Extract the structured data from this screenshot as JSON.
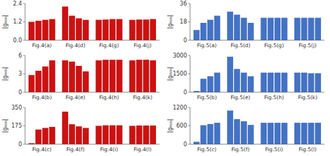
{
  "chart_data": [
    {
      "type": "bar",
      "y_label": "|gₘᵢₙ|",
      "categories": [
        "Fig.4(a)",
        "Fig.4(d)",
        "Fig.4(g)",
        "Fig.4(j)"
      ],
      "color": "#cc1111",
      "grid": false,
      "series": [
        {
          "values": [
            1.2,
            2.2,
            1.33,
            1.33
          ]
        },
        {
          "values": [
            1.27,
            1.6,
            1.35,
            1.35
          ]
        },
        {
          "values": [
            1.33,
            1.43,
            1.38,
            1.35
          ]
        },
        {
          "values": [
            1.38,
            1.33,
            1.38,
            1.38
          ]
        }
      ],
      "ylim": [
        0,
        2.4
      ],
      "yticks": [
        {
          "value": 0,
          "label": "0.0"
        },
        1.2,
        2.4
      ]
    },
    {
      "type": "bar",
      "y_label": "|gₘᵢₙ|",
      "categories": [
        "Fig.4(b)",
        "Fig.4(e)",
        "Fig.4(h)",
        "Fig.4(k)"
      ],
      "color": "#cc1111",
      "grid": false,
      "series": [
        {
          "values": [
            2.8,
            5.2,
            5.2,
            5.2
          ]
        },
        {
          "values": [
            3.5,
            5.0,
            5.3,
            5.3
          ]
        },
        {
          "values": [
            4.2,
            4.3,
            5.3,
            5.3
          ]
        },
        {
          "values": [
            5.2,
            3.4,
            5.3,
            5.2
          ]
        }
      ],
      "ylim": [
        0,
        6
      ],
      "yticks": [
        0,
        3,
        6
      ]
    },
    {
      "type": "bar",
      "y_label": "|gₘᵢₙ|",
      "categories": [
        "Fig.4(c)",
        "Fig.4(f)",
        "Fig.4(i)",
        "Fig.4(l)"
      ],
      "color": "#cc1111",
      "grid": false,
      "series": [
        {
          "values": [
            10,
            310,
            175,
            175
          ]
        },
        {
          "values": [
            140,
            190,
            180,
            178
          ]
        },
        {
          "values": [
            155,
            170,
            180,
            178
          ]
        },
        {
          "values": [
            165,
            155,
            180,
            178
          ]
        }
      ],
      "ylim": [
        0,
        350
      ],
      "yticks": [
        0,
        175,
        350
      ]
    },
    {
      "type": "bar",
      "y_label": "|gₘᵢₙ|",
      "categories": [
        "Fig.5(a)",
        "Fig.5(d)",
        "Fig.5(g)",
        "Fig.5(j)"
      ],
      "color": "#4472c4",
      "grid": false,
      "series": [
        {
          "values": [
            10,
            28,
            22,
            22
          ]
        },
        {
          "values": [
            17,
            25,
            22,
            22
          ]
        },
        {
          "values": [
            20,
            22,
            22,
            22
          ]
        },
        {
          "values": [
            24,
            17,
            22,
            22
          ]
        }
      ],
      "ylim": [
        0,
        36
      ],
      "yticks": [
        0,
        18,
        36
      ]
    },
    {
      "type": "bar",
      "y_label": "|gₘᵢₙ|",
      "categories": [
        "Fig.5(b)",
        "Fig.5(e)",
        "Fig.5(h)",
        "Fig.5(k)"
      ],
      "color": "#4472c4",
      "grid": false,
      "series": [
        {
          "values": [
            100,
            2900,
            1600,
            1600
          ]
        },
        {
          "values": [
            1100,
            1900,
            1600,
            1600
          ]
        },
        {
          "values": [
            1300,
            1600,
            1600,
            1550
          ]
        },
        {
          "values": [
            1600,
            1300,
            1600,
            1550
          ]
        }
      ],
      "ylim": [
        0,
        3000
      ],
      "yticks": [
        0,
        1500,
        3000
      ]
    },
    {
      "type": "bar",
      "y_label": "|gₘᵢₙ|",
      "categories": [
        "Fig.5(c)",
        "Fig.5(f)",
        "Fig.5(i)",
        "Fig.5(l)"
      ],
      "color": "#4472c4",
      "grid": false,
      "series": [
        {
          "values": [
            80,
            1100,
            700,
            700
          ]
        },
        {
          "values": [
            620,
            820,
            700,
            700
          ]
        },
        {
          "values": [
            660,
            750,
            700,
            700
          ]
        },
        {
          "values": [
            700,
            630,
            700,
            700
          ]
        }
      ],
      "ylim": [
        0,
        1200
      ],
      "yticks": [
        0,
        600,
        1200
      ]
    }
  ]
}
